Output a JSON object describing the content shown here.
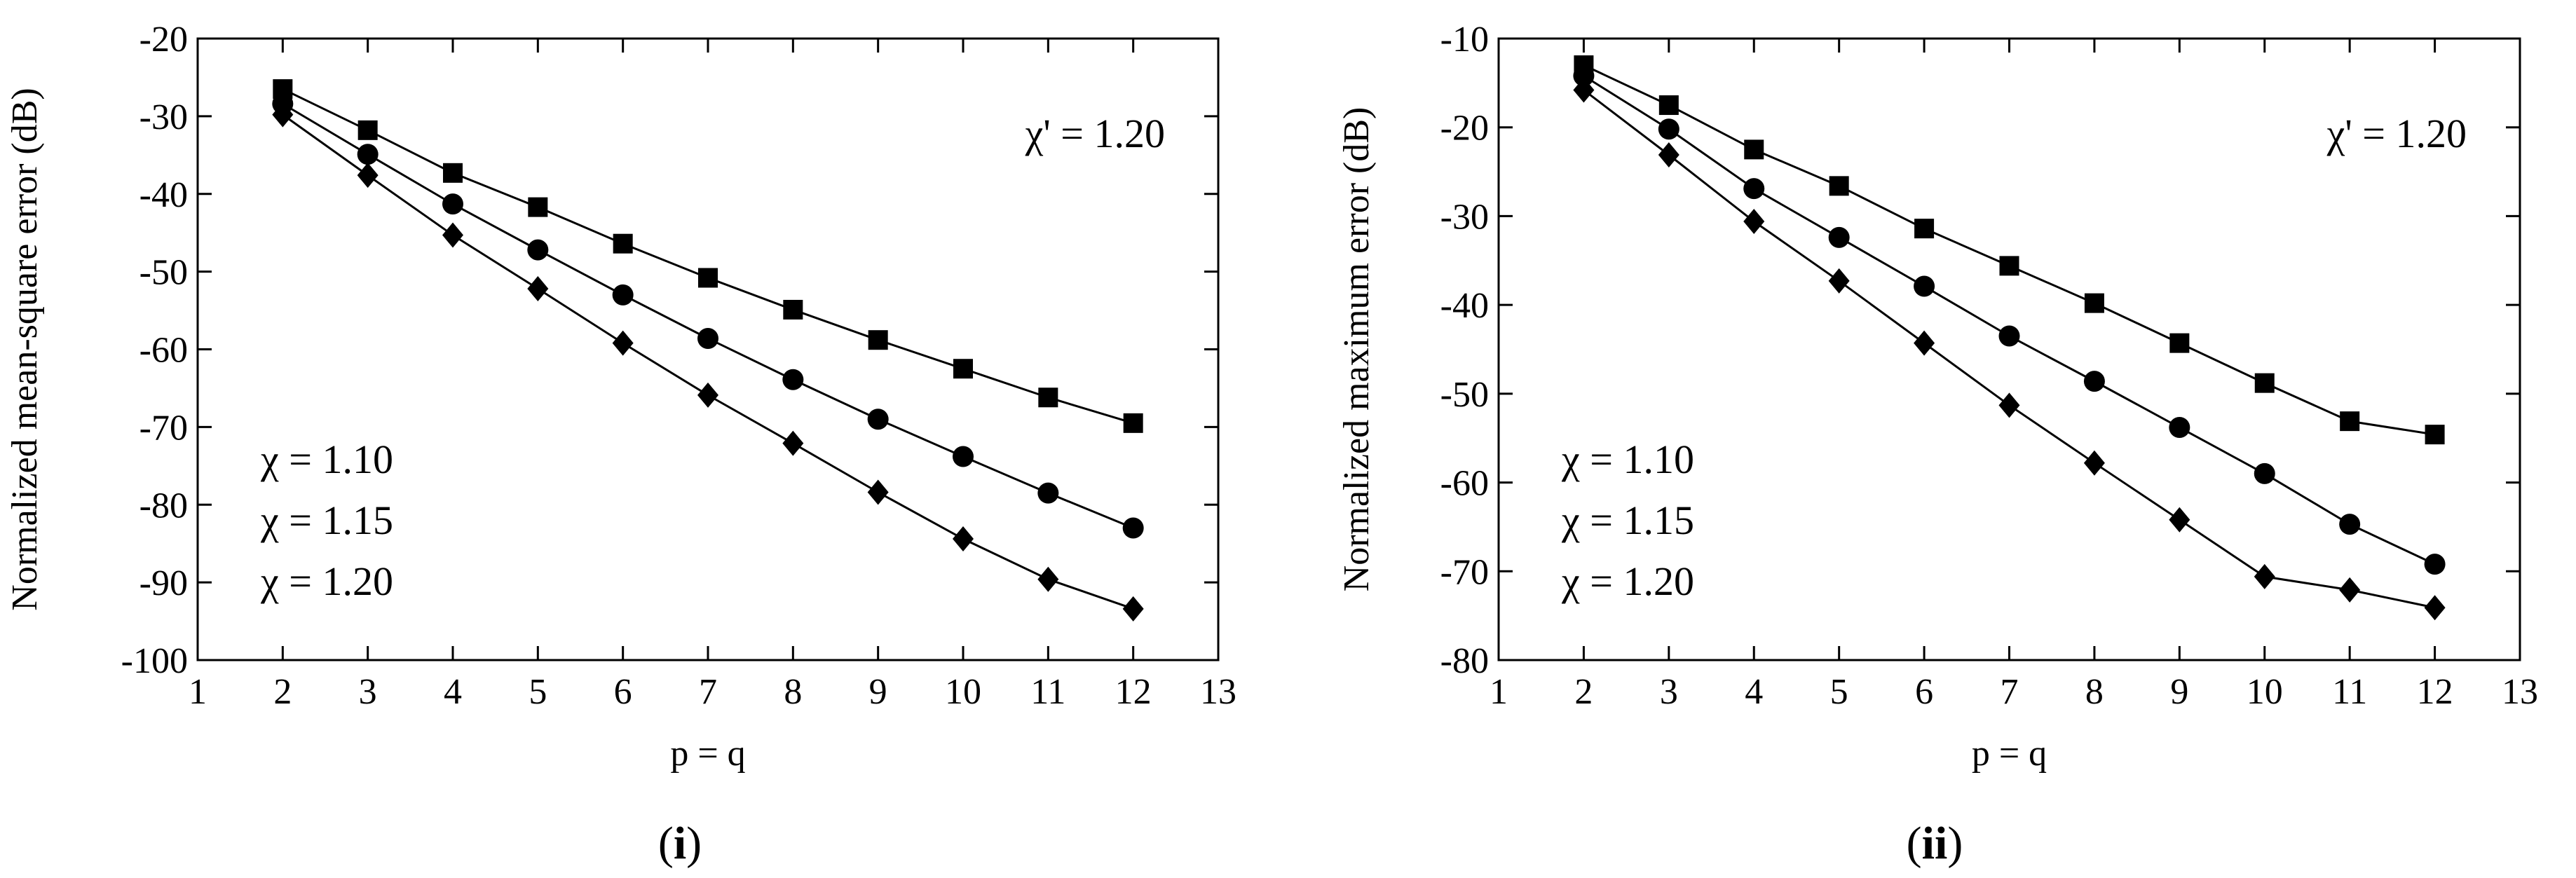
{
  "chart_data": [
    {
      "type": "line",
      "panel_label": {
        "open": "(",
        "bold": "i",
        "close": ")"
      },
      "xlabel": "p = q",
      "ylabel": "Normalized mean-square error (dB)",
      "xlim": [
        1,
        13
      ],
      "ylim": [
        -100,
        -20
      ],
      "xticks": [
        "1",
        "2",
        "3",
        "4",
        "5",
        "6",
        "7",
        "8",
        "9",
        "10",
        "11",
        "12",
        "13"
      ],
      "yticks": [
        "-20",
        "-30",
        "-40",
        "-50",
        "-60",
        "-70",
        "-80",
        "-90",
        "-100"
      ],
      "x": [
        2,
        3,
        4,
        5,
        6,
        7,
        8,
        9,
        10,
        11,
        12
      ],
      "series": [
        {
          "marker": "square",
          "values": [
            -26.5,
            -31.8,
            -37.3,
            -41.7,
            -46.4,
            -50.8,
            -54.9,
            -58.8,
            -62.5,
            -66.2,
            -69.5
          ]
        },
        {
          "marker": "circle",
          "values": [
            -28.4,
            -34.9,
            -41.3,
            -47.2,
            -53.0,
            -58.6,
            -63.9,
            -69.0,
            -73.8,
            -78.5,
            -83.0
          ]
        },
        {
          "marker": "diamond",
          "values": [
            -29.8,
            -37.6,
            -45.3,
            -52.2,
            -59.2,
            -65.9,
            -72.1,
            -78.4,
            -84.4,
            -89.6,
            -93.4
          ]
        }
      ],
      "annotations": {
        "top_right": "χ' = 1.20",
        "legend_lines": [
          "χ = 1.10",
          "χ = 1.15",
          "χ = 1.20"
        ]
      },
      "grid": false
    },
    {
      "type": "line",
      "panel_label": {
        "open": "(",
        "bold": "ii",
        "close": ")"
      },
      "xlabel": "p = q",
      "ylabel": "Normalized maximum error (dB)",
      "xlim": [
        1,
        13
      ],
      "ylim": [
        -80,
        -10
      ],
      "xticks": [
        "1",
        "2",
        "3",
        "4",
        "5",
        "6",
        "7",
        "8",
        "9",
        "10",
        "11",
        "12",
        "13"
      ],
      "yticks": [
        "-10",
        "-20",
        "-30",
        "-40",
        "-50",
        "-60",
        "-70",
        "-80"
      ],
      "x": [
        2,
        3,
        4,
        5,
        6,
        7,
        8,
        9,
        10,
        11,
        12
      ],
      "series": [
        {
          "marker": "square",
          "values": [
            -13.0,
            -17.5,
            -22.5,
            -26.6,
            -31.4,
            -35.6,
            -39.8,
            -44.3,
            -48.8,
            -53.1,
            -54.6
          ]
        },
        {
          "marker": "circle",
          "values": [
            -14.2,
            -20.2,
            -26.9,
            -32.4,
            -37.9,
            -43.5,
            -48.6,
            -53.8,
            -59.0,
            -64.7,
            -69.2
          ]
        },
        {
          "marker": "diamond",
          "values": [
            -15.8,
            -23.1,
            -30.6,
            -37.3,
            -44.3,
            -51.3,
            -57.8,
            -64.2,
            -70.6,
            -72.1,
            -74.1
          ]
        }
      ],
      "annotations": {
        "top_right": "χ' = 1.20",
        "legend_lines": [
          "χ = 1.10",
          "χ = 1.15",
          "χ = 1.20"
        ]
      },
      "grid": false
    }
  ]
}
